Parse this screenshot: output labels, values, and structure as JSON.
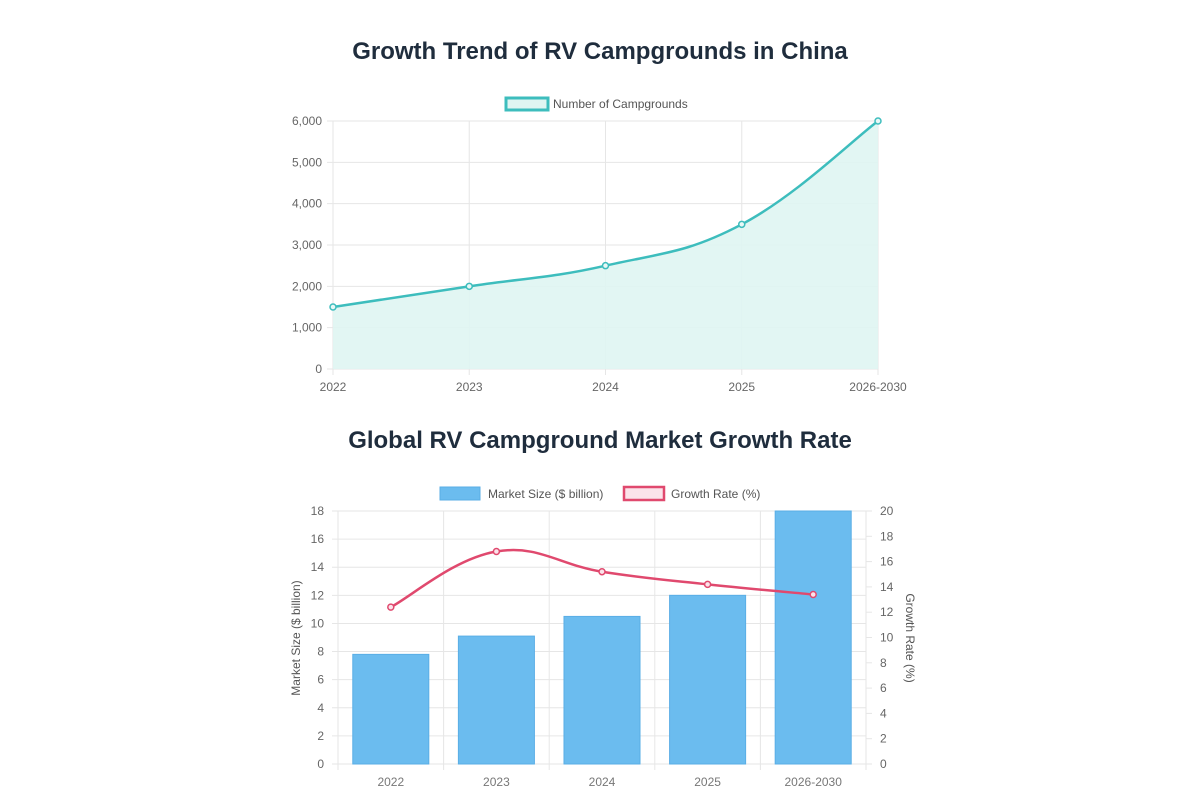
{
  "chart_data": [
    {
      "type": "area",
      "title": "Growth Trend of RV Campgrounds in China",
      "categories": [
        "2022",
        "2023",
        "2024",
        "2025",
        "2026-2030"
      ],
      "series": [
        {
          "name": "Number of Campgrounds",
          "values": [
            1500,
            2000,
            2500,
            3500,
            6000
          ],
          "color": "#3dbdbd",
          "fill": "#dff5f2"
        }
      ],
      "yticks": [
        "0",
        "1,000",
        "2,000",
        "3,000",
        "4,000",
        "5,000",
        "6,000"
      ],
      "ylim": [
        0,
        6000
      ],
      "xlabel": "",
      "ylabel": "",
      "legend": "top-center",
      "grid": true
    },
    {
      "type": "bar",
      "title": "Global RV Campground Market Growth Rate",
      "categories": [
        "2022",
        "2023",
        "2024",
        "2025",
        "2026-2030"
      ],
      "series": [
        {
          "name": "Market Size ($ billion)",
          "type": "bar",
          "axis": "left",
          "values": [
            7.8,
            9.1,
            10.5,
            12,
            18
          ],
          "color": "#6bbcef"
        },
        {
          "name": "Growth Rate (%)",
          "type": "line",
          "axis": "right",
          "values": [
            12.4,
            16.8,
            15.2,
            14.2,
            13.4
          ],
          "color": "#e0496e"
        }
      ],
      "yticks_left": [
        "0",
        "2",
        "4",
        "6",
        "8",
        "10",
        "12",
        "14",
        "16",
        "18"
      ],
      "yticks_right": [
        "0",
        "2",
        "4",
        "6",
        "8",
        "10",
        "12",
        "14",
        "16",
        "18",
        "20"
      ],
      "ylim_left": [
        0,
        18
      ],
      "ylim_right": [
        0,
        20
      ],
      "ylabel_left": "Market Size ($ billion)",
      "ylabel_right": "Growth Rate (%)",
      "legend": "top-center",
      "grid": true
    }
  ]
}
